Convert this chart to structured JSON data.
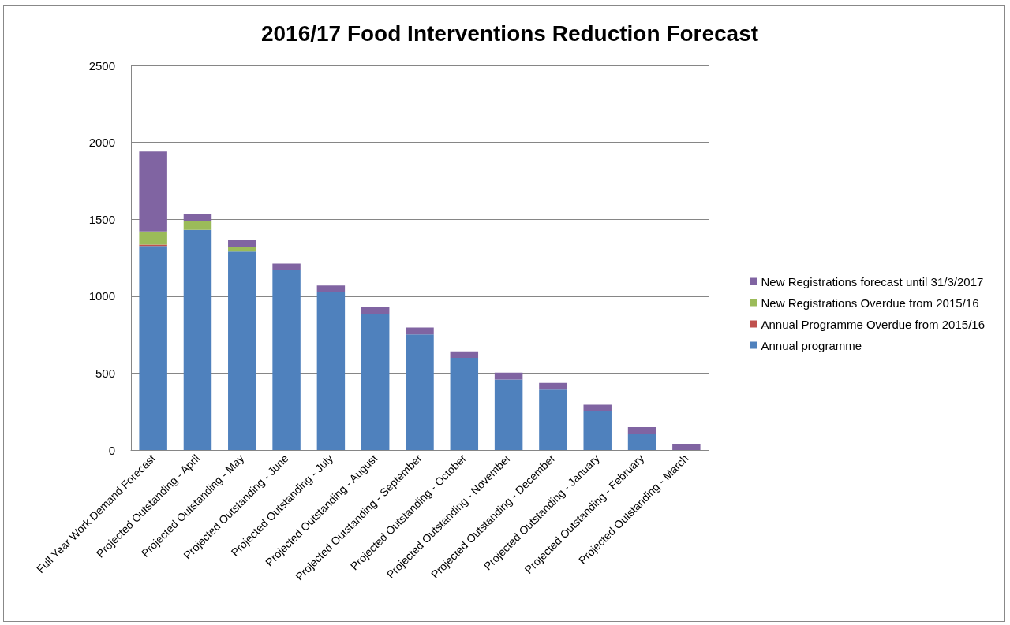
{
  "chart_data": {
    "type": "bar",
    "title": "2016/17 Food Interventions Reduction Forecast",
    "stacked": true,
    "grid": "y",
    "legend": "right",
    "categories": [
      "Full Year Work Demand Forecast",
      "Projected Outstanding - April",
      "Projected Outstanding - May",
      "Projected Outstanding - June",
      "Projected Outstanding - July",
      "Projected Outstanding - August",
      "Projected Outstanding - September",
      "Projected Outstanding - October",
      "Projected Outstanding - November",
      "Projected Outstanding - December",
      "Projected Outstanding - January",
      "Projected Outstanding - February",
      "Projected Outstanding - March"
    ],
    "ylim": [
      0,
      2500
    ],
    "yticks": [
      0,
      500,
      1000,
      1500,
      2000,
      2500
    ],
    "series": [
      {
        "name": "Annual programme",
        "color": "#4f81bd",
        "values": [
          1325,
          1430,
          1290,
          1170,
          1025,
          885,
          752,
          600,
          458,
          393,
          253,
          103,
          0
        ]
      },
      {
        "name": "Annual Programme Overdue from 2015/16",
        "color": "#c0504d",
        "values": [
          10,
          0,
          0,
          0,
          0,
          0,
          0,
          0,
          0,
          0,
          0,
          0,
          0
        ]
      },
      {
        "name": "New Registrations Overdue from 2015/16",
        "color": "#9bbb59",
        "values": [
          85,
          60,
          28,
          0,
          0,
          0,
          0,
          0,
          0,
          0,
          0,
          0,
          0
        ]
      },
      {
        "name": "New Registrations forecast until 31/3/2017",
        "color": "#8064a2",
        "values": [
          520,
          45,
          45,
          42,
          45,
          45,
          45,
          42,
          45,
          44,
          41,
          45,
          41
        ]
      }
    ]
  }
}
